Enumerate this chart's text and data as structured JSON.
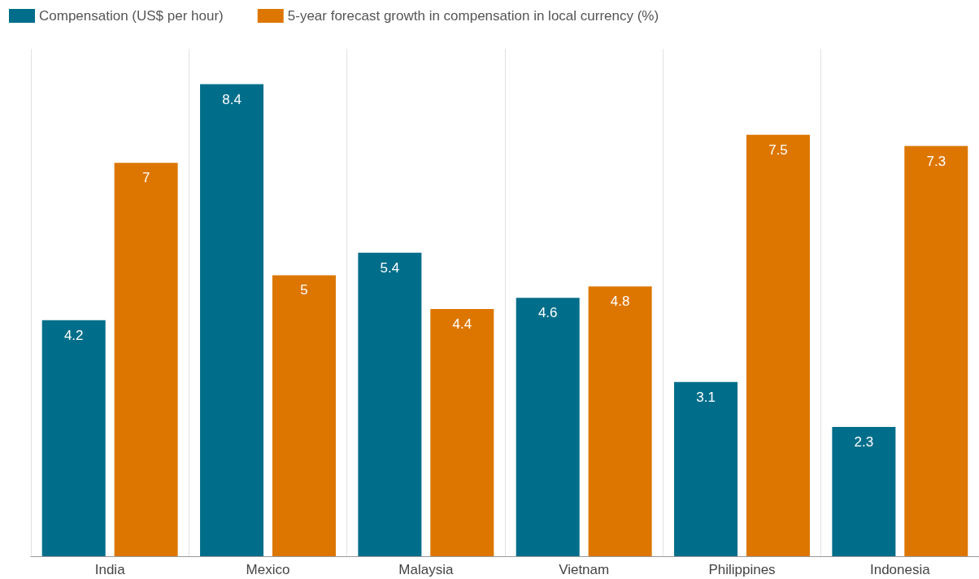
{
  "chart_data": {
    "type": "bar",
    "categories": [
      "India",
      "Mexico",
      "Malaysia",
      "Vietnam",
      "Philippines",
      "Indonesia"
    ],
    "series": [
      {
        "name": "Compensation (US$ per hour)",
        "color": "#006e8a",
        "values": [
          4.2,
          8.4,
          5.4,
          4.6,
          3.1,
          2.3
        ]
      },
      {
        "name": "5-year forecast growth in compensation in local currency (%)",
        "color": "#dd7600",
        "values": [
          7,
          5,
          4.4,
          4.8,
          7.5,
          7.3
        ]
      }
    ],
    "data_labels": true,
    "grid": "x",
    "legend": "top left"
  }
}
